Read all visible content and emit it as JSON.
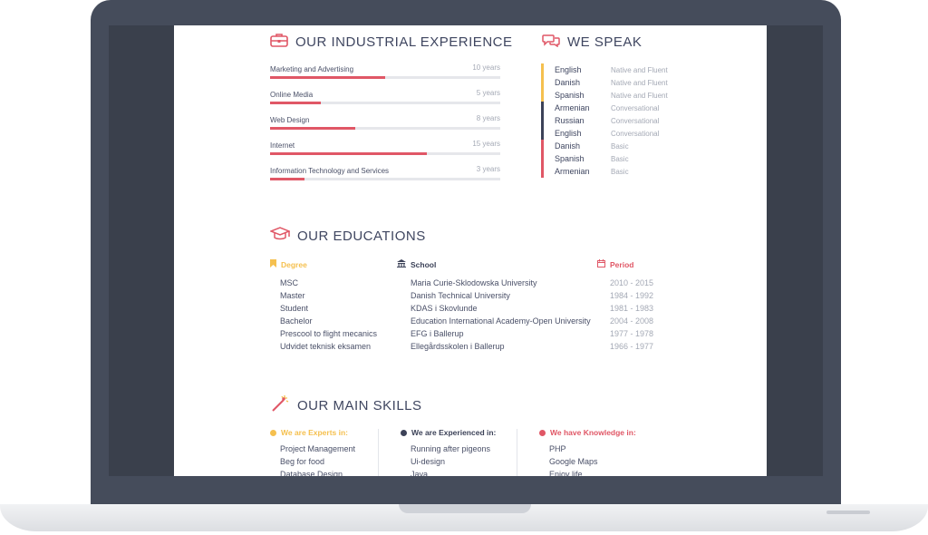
{
  "experience": {
    "title": "OUR INDUSTRIAL EXPERIENCE",
    "items": [
      {
        "label": "Marketing and Advertising",
        "years": "10 years",
        "fill": 0.5
      },
      {
        "label": "Online Media",
        "years": "5 years",
        "fill": 0.22
      },
      {
        "label": "Web Design",
        "years": "8 years",
        "fill": 0.37
      },
      {
        "label": "Internet",
        "years": "15 years",
        "fill": 0.68
      },
      {
        "label": "Information Technology and Services",
        "years": "3 years",
        "fill": 0.15
      }
    ]
  },
  "languages": {
    "title": "WE SPEAK",
    "items": [
      {
        "name": "English",
        "level": "Native and Fluent",
        "color": "#f5c04f"
      },
      {
        "name": "Danish",
        "level": "Native and Fluent",
        "color": "#f5c04f"
      },
      {
        "name": "Spanish",
        "level": "Native and Fluent",
        "color": "#f5c04f"
      },
      {
        "name": "Armenian",
        "level": "Conversational",
        "color": "#3c4258"
      },
      {
        "name": "Russian",
        "level": "Conversational",
        "color": "#3c4258"
      },
      {
        "name": "English",
        "level": "Conversational",
        "color": "#3c4258"
      },
      {
        "name": "Danish",
        "level": "Basic",
        "color": "#e05766"
      },
      {
        "name": "Spanish",
        "level": "Basic",
        "color": "#e05766"
      },
      {
        "name": "Armenian",
        "level": "Basic",
        "color": "#e05766"
      }
    ]
  },
  "education": {
    "title": "OUR EDUCATIONS",
    "headers": {
      "degree": "Degree",
      "school": "School",
      "period": "Period"
    },
    "degrees": [
      "MSC",
      "Master",
      "Student",
      "Bachelor",
      "Prescool to flight mecanics",
      "Udvidet teknisk eksamen"
    ],
    "schools": [
      "Maria Curie-Sklodowska University",
      "Danish Technical University",
      "KDAS i Skovlunde",
      "Education International Academy-Open University",
      "EFG i Ballerup",
      "Ellegårdsskolen i Ballerup"
    ],
    "periods": [
      "2010 - 2015",
      "1984 - 1992",
      "1981 - 1983",
      "2004 - 2008",
      "1977 - 1978",
      "1966 - 1977"
    ]
  },
  "skills": {
    "title": "OUR MAIN SKILLS",
    "experts": {
      "label": "We are Experts in:",
      "items": [
        "Project Management",
        "Beg for food",
        "Database Design"
      ]
    },
    "experienced": {
      "label": "We are Experienced in:",
      "items": [
        "Running after pigeons",
        "Ui-design",
        "Java"
      ]
    },
    "knowledge": {
      "label": "We have Knowledge in:",
      "items": [
        "PHP",
        "Google Maps",
        "Enjoy life"
      ]
    }
  },
  "colors": {
    "accent_red": "#e05766",
    "accent_yellow": "#f5c04f",
    "accent_navy": "#3c4258",
    "frame": "#454c5b"
  },
  "icons": {
    "experience": "briefcase-icon",
    "languages": "chat-bubbles-icon",
    "education": "graduation-cap-icon",
    "skills": "magic-wand-icon",
    "degree": "bookmark-icon",
    "school": "bank-icon",
    "period": "calendar-icon"
  }
}
